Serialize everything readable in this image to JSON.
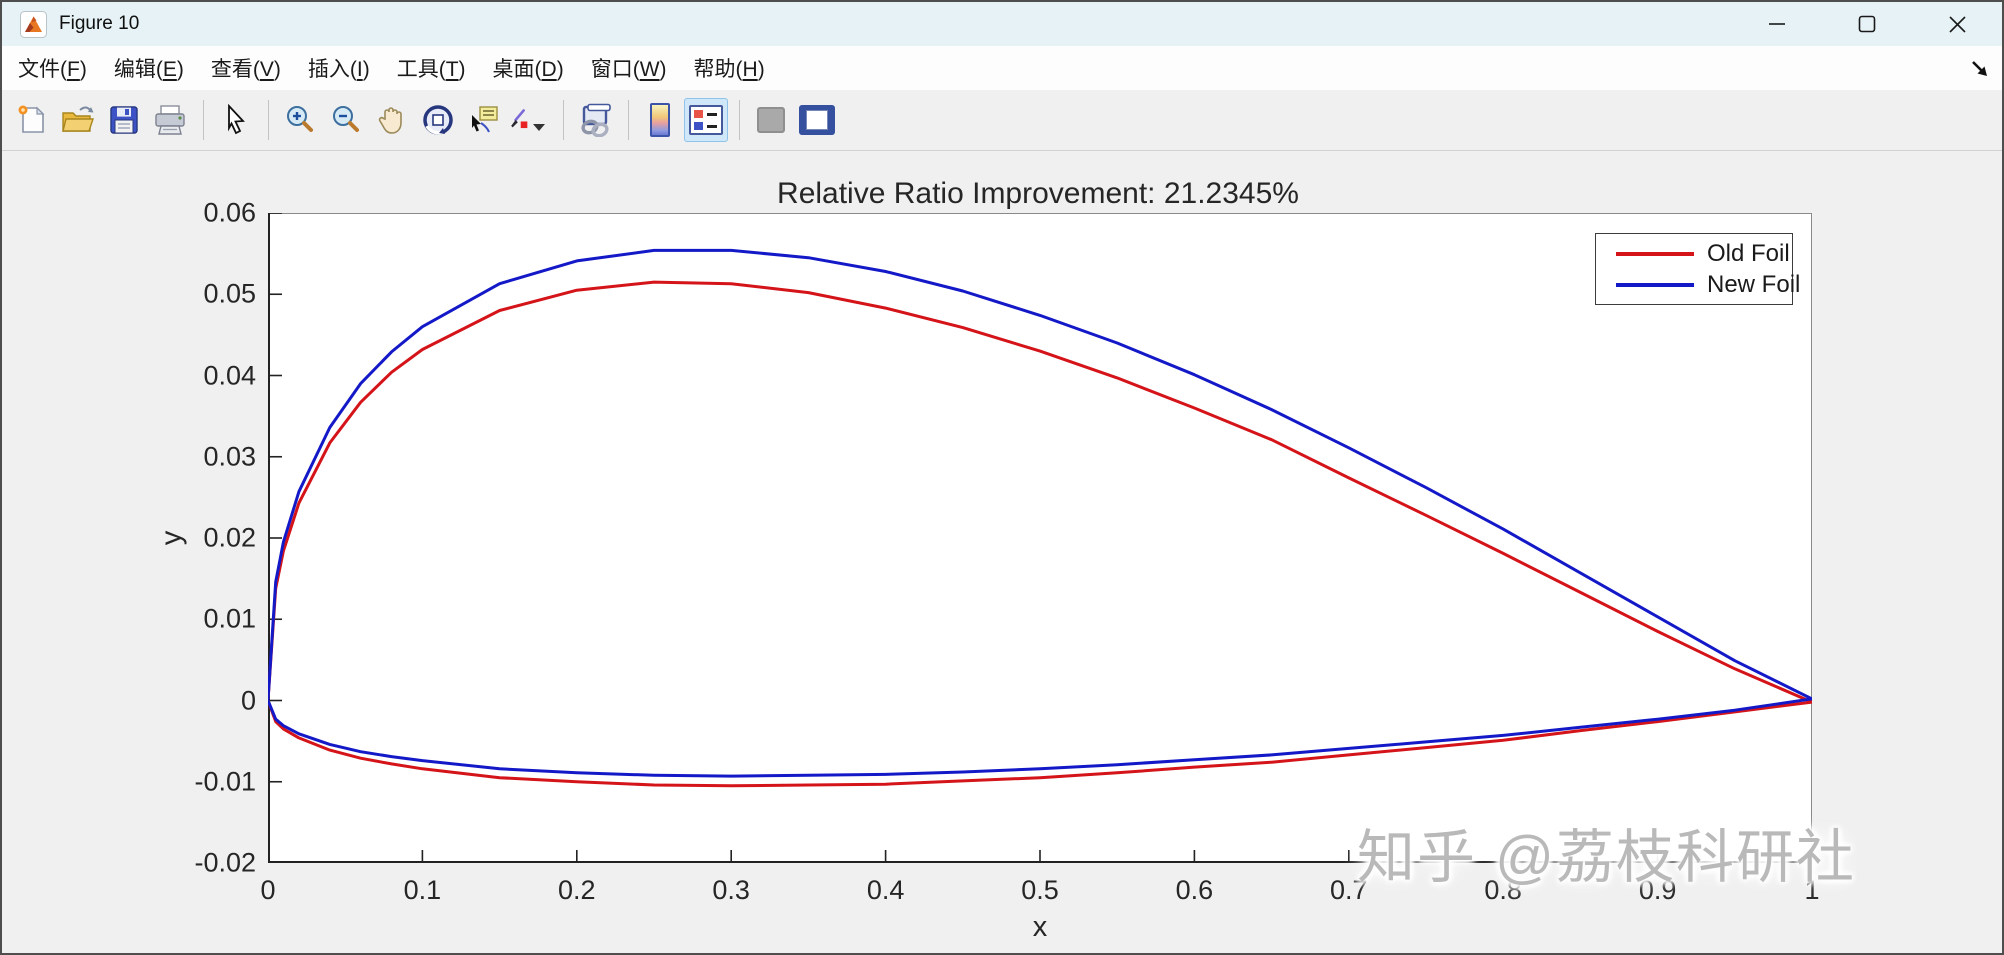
{
  "window": {
    "title": "Figure 10",
    "controls": [
      "minimize",
      "maximize",
      "close"
    ]
  },
  "menu": {
    "items": [
      {
        "pre": "文件(",
        "key": "F",
        "post": ")"
      },
      {
        "pre": "编辑(",
        "key": "E",
        "post": ")"
      },
      {
        "pre": "查看(",
        "key": "V",
        "post": ")"
      },
      {
        "pre": "插入(",
        "key": "I",
        "post": ")"
      },
      {
        "pre": "工具(",
        "key": "T",
        "post": ")"
      },
      {
        "pre": "桌面(",
        "key": "D",
        "post": ")"
      },
      {
        "pre": "窗口(",
        "key": "W",
        "post": ")"
      },
      {
        "pre": "帮助(",
        "key": "H",
        "post": ")"
      }
    ]
  },
  "toolbar": {
    "icons": [
      "new-figure",
      "open-file",
      "save-figure",
      "print-figure",
      "edit-plot-arrow",
      "zoom-in",
      "zoom-out",
      "pan",
      "rotate-3d",
      "data-cursor",
      "brush",
      "link-plot",
      "insert-colorbar",
      "insert-legend",
      "hide-plot-tools",
      "show-plot-tools"
    ],
    "active_icon": "insert-legend"
  },
  "watermark": {
    "text": "知乎 @荔枝科研社"
  },
  "chart_data": {
    "type": "line",
    "title": "Relative Ratio Improvement: 21.2345%",
    "xlabel": "x",
    "ylabel": "y",
    "xlim": [
      0,
      1
    ],
    "ylim": [
      -0.02,
      0.06
    ],
    "grid": false,
    "box": true,
    "xtick_values": [
      0,
      0.1,
      0.2,
      0.3,
      0.4,
      0.5,
      0.6,
      0.7,
      0.8,
      0.9,
      1
    ],
    "xtick_labels": [
      "0",
      "0.1",
      "0.2",
      "0.3",
      "0.4",
      "0.5",
      "0.6",
      "0.7",
      "0.8",
      "0.9",
      "1"
    ],
    "ytick_values": [
      -0.02,
      -0.01,
      0,
      0.01,
      0.02,
      0.03,
      0.04,
      0.05,
      0.06
    ],
    "ytick_labels": [
      "-0.02",
      "-0.01",
      "0",
      "0.01",
      "0.02",
      "0.03",
      "0.04",
      "0.05",
      "0.06"
    ],
    "legend": {
      "position": "northeast",
      "entries": [
        {
          "label": "Old Foil",
          "color": "#d41419"
        },
        {
          "label": "New Foil",
          "color": "#1419c8"
        }
      ]
    },
    "series": [
      {
        "name": "Old Foil",
        "color": "#d41419",
        "line_width": 3,
        "upper": [
          [
            0,
            0
          ],
          [
            0.005,
            0.0138
          ],
          [
            0.01,
            0.0184
          ],
          [
            0.02,
            0.0243
          ],
          [
            0.04,
            0.0317
          ],
          [
            0.06,
            0.0367
          ],
          [
            0.08,
            0.0404
          ],
          [
            0.1,
            0.0432
          ],
          [
            0.15,
            0.048
          ],
          [
            0.2,
            0.0505
          ],
          [
            0.25,
            0.0515
          ],
          [
            0.3,
            0.0513
          ],
          [
            0.35,
            0.0502
          ],
          [
            0.4,
            0.0483
          ],
          [
            0.45,
            0.0459
          ],
          [
            0.5,
            0.043
          ],
          [
            0.55,
            0.0397
          ],
          [
            0.6,
            0.036
          ],
          [
            0.65,
            0.0321
          ],
          [
            0.7,
            0.0274
          ],
          [
            0.75,
            0.0228
          ],
          [
            0.8,
            0.0181
          ],
          [
            0.85,
            0.0133
          ],
          [
            0.9,
            0.0085
          ],
          [
            0.95,
            0.0039
          ],
          [
            1,
            -0.0002
          ]
        ],
        "lower": [
          [
            0,
            0
          ],
          [
            0.005,
            -0.0026
          ],
          [
            0.01,
            -0.0035
          ],
          [
            0.02,
            -0.0046
          ],
          [
            0.04,
            -0.0061
          ],
          [
            0.06,
            -0.0071
          ],
          [
            0.08,
            -0.0078
          ],
          [
            0.1,
            -0.0084
          ],
          [
            0.15,
            -0.0095
          ],
          [
            0.2,
            -0.01
          ],
          [
            0.25,
            -0.0104
          ],
          [
            0.3,
            -0.0105
          ],
          [
            0.35,
            -0.0104
          ],
          [
            0.4,
            -0.0103
          ],
          [
            0.45,
            -0.0099
          ],
          [
            0.5,
            -0.0095
          ],
          [
            0.55,
            -0.0089
          ],
          [
            0.6,
            -0.0082
          ],
          [
            0.65,
            -0.0076
          ],
          [
            0.7,
            -0.0067
          ],
          [
            0.75,
            -0.0058
          ],
          [
            0.8,
            -0.0049
          ],
          [
            0.85,
            -0.0037
          ],
          [
            0.9,
            -0.0026
          ],
          [
            0.95,
            -0.0014
          ],
          [
            1,
            -0.0002
          ]
        ]
      },
      {
        "name": "New Foil",
        "color": "#1419c8",
        "line_width": 3,
        "upper": [
          [
            0,
            0
          ],
          [
            0.005,
            0.0146
          ],
          [
            0.01,
            0.0195
          ],
          [
            0.02,
            0.0257
          ],
          [
            0.04,
            0.0336
          ],
          [
            0.06,
            0.039
          ],
          [
            0.08,
            0.0429
          ],
          [
            0.1,
            0.046
          ],
          [
            0.15,
            0.0513
          ],
          [
            0.2,
            0.0541
          ],
          [
            0.25,
            0.0554
          ],
          [
            0.3,
            0.0554
          ],
          [
            0.35,
            0.0545
          ],
          [
            0.4,
            0.0528
          ],
          [
            0.45,
            0.0504
          ],
          [
            0.5,
            0.0474
          ],
          [
            0.55,
            0.044
          ],
          [
            0.6,
            0.0401
          ],
          [
            0.65,
            0.0358
          ],
          [
            0.7,
            0.0311
          ],
          [
            0.75,
            0.0262
          ],
          [
            0.8,
            0.0211
          ],
          [
            0.85,
            0.0157
          ],
          [
            0.9,
            0.0103
          ],
          [
            0.95,
            0.0049
          ],
          [
            1,
            0.0002
          ]
        ],
        "lower": [
          [
            0,
            0
          ],
          [
            0.005,
            -0.0023
          ],
          [
            0.01,
            -0.0031
          ],
          [
            0.02,
            -0.0041
          ],
          [
            0.04,
            -0.0054
          ],
          [
            0.06,
            -0.0063
          ],
          [
            0.08,
            -0.0069
          ],
          [
            0.1,
            -0.0074
          ],
          [
            0.15,
            -0.0084
          ],
          [
            0.2,
            -0.0089
          ],
          [
            0.25,
            -0.0092
          ],
          [
            0.3,
            -0.0093
          ],
          [
            0.35,
            -0.0092
          ],
          [
            0.4,
            -0.0091
          ],
          [
            0.45,
            -0.0088
          ],
          [
            0.5,
            -0.0084
          ],
          [
            0.55,
            -0.0079
          ],
          [
            0.6,
            -0.0073
          ],
          [
            0.65,
            -0.0067
          ],
          [
            0.7,
            -0.0059
          ],
          [
            0.75,
            -0.0051
          ],
          [
            0.8,
            -0.0043
          ],
          [
            0.85,
            -0.0033
          ],
          [
            0.9,
            -0.0023
          ],
          [
            0.95,
            -0.0012
          ],
          [
            1,
            0.0002
          ]
        ]
      }
    ]
  }
}
